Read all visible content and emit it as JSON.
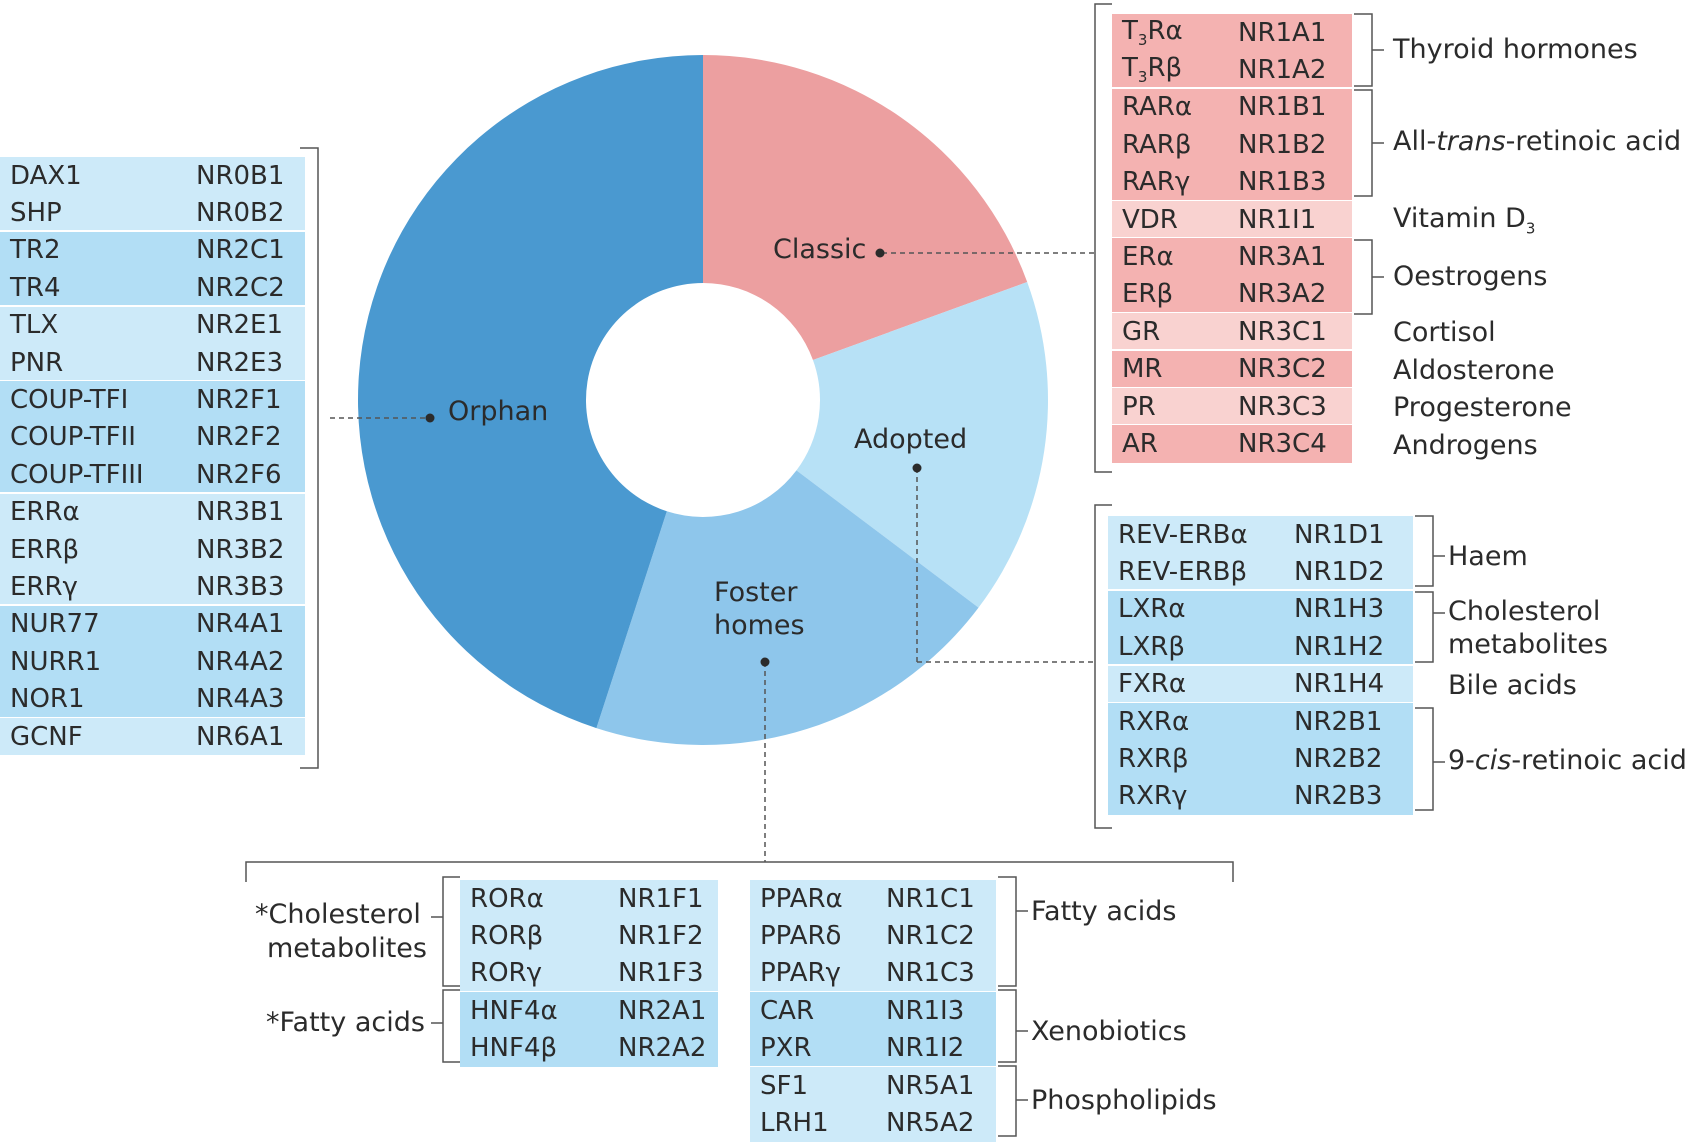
{
  "colors": {
    "orphan": "#4a99d0",
    "foster": "#8ec6eb",
    "adopted": "#b7e1f6",
    "classic": "#ec9fa0",
    "row_blue_light": "#cdeaf9",
    "row_blue_mid": "#b2def5",
    "row_pink_light": "#f9d2d0",
    "row_pink_mid": "#f4b2b1"
  },
  "segments": {
    "orphan": "Orphan",
    "classic": "Classic",
    "adopted": "Adopted",
    "foster_line1": "Foster",
    "foster_line2": "homes"
  },
  "orphan_table": [
    {
      "name": "DAX1",
      "code": "NR0B1"
    },
    {
      "name": "SHP",
      "code": "NR0B2"
    },
    {
      "name": "TR2",
      "code": "NR2C1"
    },
    {
      "name": "TR4",
      "code": "NR2C2"
    },
    {
      "name": "TLX",
      "code": "NR2E1"
    },
    {
      "name": "PNR",
      "code": "NR2E3"
    },
    {
      "name": "COUP-TFI",
      "code": "NR2F1"
    },
    {
      "name": "COUP-TFII",
      "code": "NR2F2"
    },
    {
      "name": "COUP-TFIII",
      "code": "NR2F6"
    },
    {
      "name": "ERRα",
      "code": "NR3B1"
    },
    {
      "name": "ERRβ",
      "code": "NR3B2"
    },
    {
      "name": "ERRγ",
      "code": "NR3B3"
    },
    {
      "name": "NUR77",
      "code": "NR4A1"
    },
    {
      "name": "NURR1",
      "code": "NR4A2"
    },
    {
      "name": "NOR1",
      "code": "NR4A3"
    },
    {
      "name": "GCNF",
      "code": "NR6A1"
    }
  ],
  "classic_table": [
    {
      "name_pre": "T",
      "name_sub": "3",
      "name_post": "Rα",
      "code": "NR1A1"
    },
    {
      "name_pre": "T",
      "name_sub": "3",
      "name_post": "Rβ",
      "code": "NR1A2"
    },
    {
      "name": "RARα",
      "code": "NR1B1"
    },
    {
      "name": "RARβ",
      "code": "NR1B2"
    },
    {
      "name": "RARγ",
      "code": "NR1B3"
    },
    {
      "name": "VDR",
      "code": "NR1I1"
    },
    {
      "name": "ERα",
      "code": "NR3A1"
    },
    {
      "name": "ERβ",
      "code": "NR3A2"
    },
    {
      "name": "GR",
      "code": "NR3C1"
    },
    {
      "name": "MR",
      "code": "NR3C2"
    },
    {
      "name": "PR",
      "code": "NR3C3"
    },
    {
      "name": "AR",
      "code": "NR3C4"
    }
  ],
  "classic_ligands": {
    "thyroid": "Thyroid hormones",
    "atra_pre": "All-",
    "atra_italic": "trans",
    "atra_post": "-retinoic acid",
    "vitd": "Vitamin D",
    "vitd_sub": "3",
    "oestrogens": "Oestrogens",
    "cortisol": "Cortisol",
    "aldosterone": "Aldosterone",
    "progesterone": "Progesterone",
    "androgens": "Androgens"
  },
  "adopted_table": [
    {
      "name": "REV-ERBα",
      "code": "NR1D1"
    },
    {
      "name": "REV-ERBβ",
      "code": "NR1D2"
    },
    {
      "name": "LXRα",
      "code": "NR1H3"
    },
    {
      "name": "LXRβ",
      "code": "NR1H2"
    },
    {
      "name": "FXRα",
      "code": "NR1H4"
    },
    {
      "name": "RXRα",
      "code": "NR2B1"
    },
    {
      "name": "RXRβ",
      "code": "NR2B2"
    },
    {
      "name": "RXRγ",
      "code": "NR2B3"
    }
  ],
  "adopted_ligands": {
    "haem": "Haem",
    "chol1": "Cholesterol",
    "chol2": "metabolites",
    "bile": "Bile acids",
    "cis_pre": "9-",
    "cis_italic": "cis",
    "cis_post": "-retinoic acid"
  },
  "foster_left_table": [
    {
      "name": "RORα",
      "code": "NR1F1"
    },
    {
      "name": "RORβ",
      "code": "NR1F2"
    },
    {
      "name": "RORγ",
      "code": "NR1F3"
    },
    {
      "name": "HNF4α",
      "code": "NR2A1"
    },
    {
      "name": "HNF4β",
      "code": "NR2A2"
    }
  ],
  "foster_left_ligands": {
    "chol1": "*Cholesterol",
    "chol2": "metabolites",
    "fatty": "*Fatty acids"
  },
  "foster_right_table": [
    {
      "name": "PPARα",
      "code": "NR1C1"
    },
    {
      "name": "PPARδ",
      "code": "NR1C2"
    },
    {
      "name": "PPARγ",
      "code": "NR1C3"
    },
    {
      "name": "CAR",
      "code": "NR1I3"
    },
    {
      "name": "PXR",
      "code": "NR1I2"
    },
    {
      "name": "SF1",
      "code": "NR5A1"
    },
    {
      "name": "LRH1",
      "code": "NR5A2"
    }
  ],
  "foster_right_ligands": {
    "fatty": "Fatty acids",
    "xeno": "Xenobiotics",
    "phospho": "Phospholipids"
  }
}
